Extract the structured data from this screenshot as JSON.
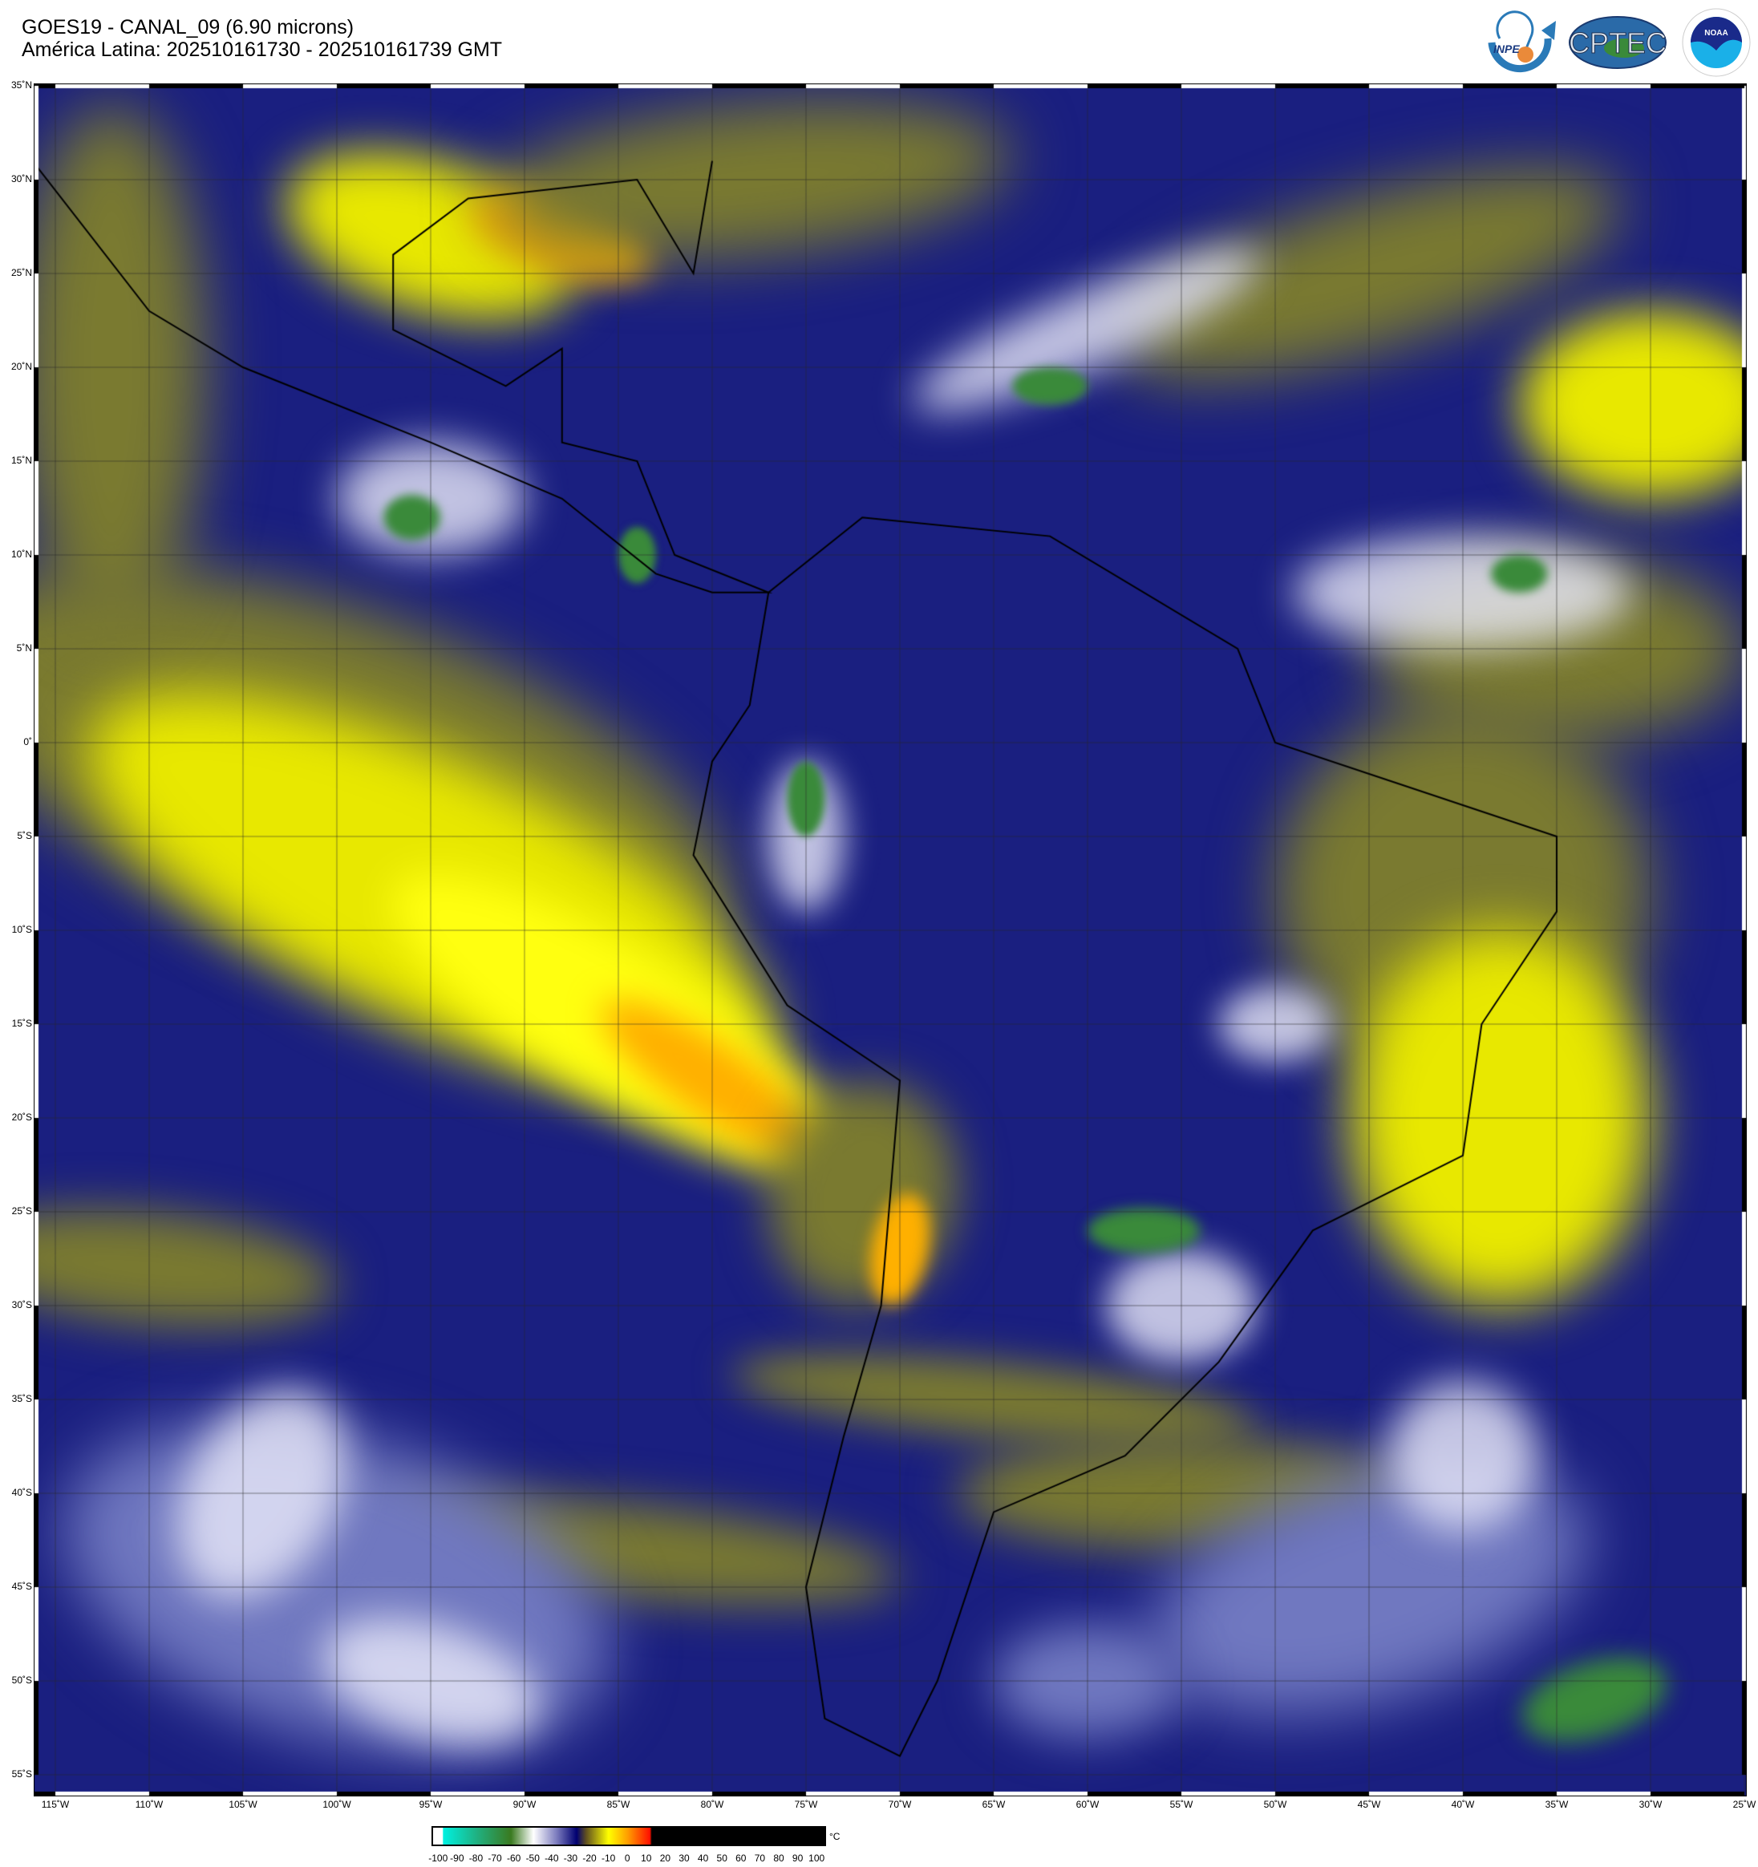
{
  "header": {
    "title": "GOES19 - CANAL_09 (6.90 microns)",
    "subtitle": "América Latina: 202510161730 - 202510161739 GMT"
  },
  "logos": [
    {
      "name": "INPE",
      "icon": "inpe-logo"
    },
    {
      "name": "CPTEC",
      "icon": "cptec-logo"
    },
    {
      "name": "NOAA",
      "icon": "noaa-logo"
    }
  ],
  "map": {
    "projection": "equirectangular",
    "lon_range": [
      -116,
      -25
    ],
    "lat_range": [
      -56.5,
      35.5
    ],
    "grid_step_deg": 5,
    "lat_labels": [
      "35˚N",
      "30˚N",
      "25˚N",
      "20˚N",
      "15˚N",
      "10˚N",
      "5˚N",
      "0˚",
      "5˚S",
      "10˚S",
      "15˚S",
      "20˚S",
      "25˚S",
      "30˚S",
      "35˚S",
      "40˚S",
      "45˚S",
      "50˚S",
      "55˚S"
    ],
    "lon_labels": [
      "115˚W",
      "110˚W",
      "105˚W",
      "100˚W",
      "95˚W",
      "90˚W",
      "85˚W",
      "80˚W",
      "75˚W",
      "70˚W",
      "65˚W",
      "60˚W",
      "55˚W",
      "50˚W",
      "45˚W",
      "40˚W",
      "35˚W",
      "30˚W",
      "25˚W"
    ]
  },
  "colorbar": {
    "unit": "°C",
    "range": [
      -103.5,
      105
    ],
    "ticks": [
      "-100",
      "-90",
      "-80",
      "-70",
      "-60",
      "-50",
      "-40",
      "-30",
      "-20",
      "-10",
      "0",
      "10",
      "20",
      "30",
      "40",
      "50",
      "60",
      "70",
      "80",
      "90",
      "100"
    ],
    "stops": [
      {
        "t": -103.5,
        "c": "#ffffff"
      },
      {
        "t": -98.5,
        "c": "#ffffff"
      },
      {
        "t": -98,
        "c": "#00f0e0"
      },
      {
        "t": -80,
        "c": "#20b080"
      },
      {
        "t": -62,
        "c": "#3a7a20"
      },
      {
        "t": -50,
        "c": "#ffffff"
      },
      {
        "t": -38,
        "c": "#8080c0"
      },
      {
        "t": -27,
        "c": "#000070"
      },
      {
        "t": -22,
        "c": "#605020"
      },
      {
        "t": -10,
        "c": "#ffff00"
      },
      {
        "t": 0,
        "c": "#ffa000"
      },
      {
        "t": 12,
        "c": "#ff1000"
      },
      {
        "t": 13,
        "c": "#000000"
      },
      {
        "t": 105,
        "c": "#000000"
      }
    ]
  }
}
